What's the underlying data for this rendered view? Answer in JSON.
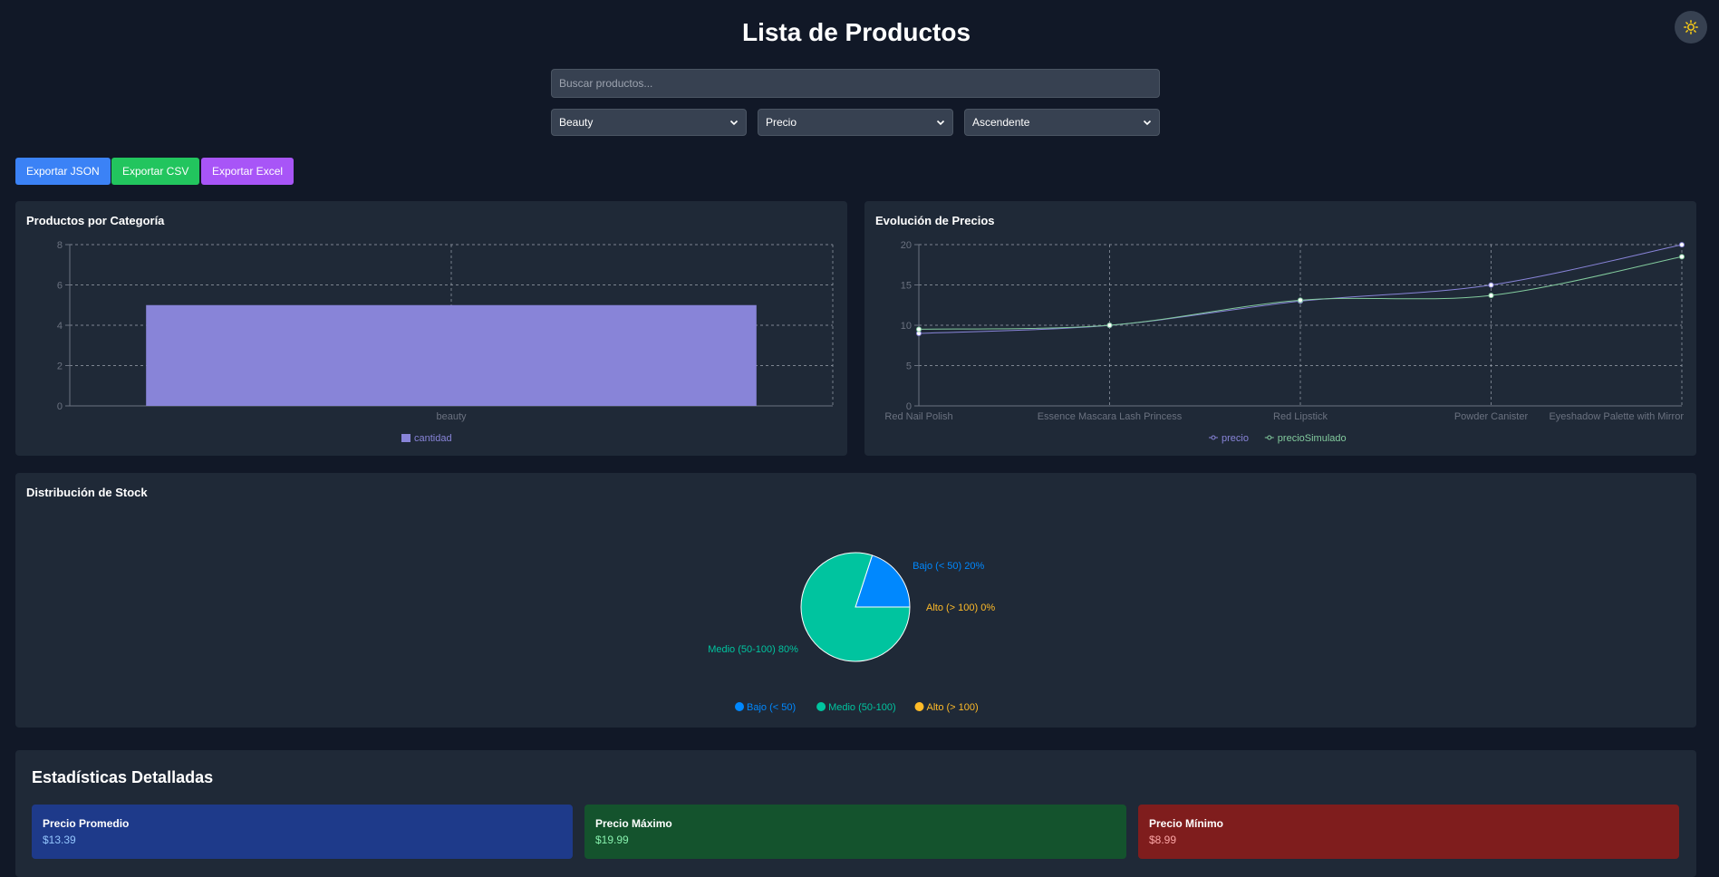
{
  "header": {
    "title": "Lista de Productos"
  },
  "search": {
    "placeholder": "Buscar productos...",
    "value": ""
  },
  "filters": {
    "category": "Beauty",
    "sort_field": "Precio",
    "sort_order": "Ascendente"
  },
  "export": {
    "json_label": "Exportar JSON",
    "csv_label": "Exportar CSV",
    "excel_label": "Exportar Excel"
  },
  "colors": {
    "json": "#3b82f6",
    "csv": "#22c55e",
    "excel": "#a855f7",
    "bar": "#8884d8",
    "precio": "#8884d8",
    "precioSimulado": "#82ca9d",
    "bajo": "#0088fe",
    "medio": "#00c49f",
    "alto": "#ffbb28"
  },
  "icons": {
    "theme": "sun-icon"
  },
  "charts": {
    "category": {
      "title": "Productos por Categoría"
    },
    "prices": {
      "title": "Evolución de Precios"
    },
    "stock": {
      "title": "Distribución de Stock"
    }
  },
  "chart_data": [
    {
      "type": "bar",
      "title": "Productos por Categoría",
      "categories": [
        "beauty"
      ],
      "series": [
        {
          "name": "cantidad",
          "values": [
            5
          ]
        }
      ],
      "yticks": [
        0,
        2,
        4,
        6,
        8
      ],
      "ylim": [
        0,
        8
      ],
      "grid": true,
      "legend": "bottom"
    },
    {
      "type": "line",
      "title": "Evolución de Precios",
      "categories": [
        "Red Nail Polish",
        "Essence Mascara Lash Princess",
        "Red Lipstick",
        "Powder Canister",
        "Eyeshadow Palette with Mirror"
      ],
      "series": [
        {
          "name": "precio",
          "values": [
            8.99,
            9.99,
            12.99,
            14.99,
            19.99
          ]
        },
        {
          "name": "precioSimulado",
          "values": [
            9.5,
            10.0,
            13.1,
            13.7,
            18.5
          ]
        }
      ],
      "yticks": [
        0,
        5,
        10,
        15,
        20
      ],
      "ylim": [
        0,
        20
      ],
      "grid": true,
      "legend": "bottom"
    },
    {
      "type": "pie",
      "title": "Distribución de Stock",
      "slices": [
        {
          "name": "Bajo (< 50)",
          "value": 20,
          "label": "Bajo (< 50) 20%"
        },
        {
          "name": "Medio (50-100)",
          "value": 80,
          "label": "Medio (50-100) 80%"
        },
        {
          "name": "Alto (> 100)",
          "value": 0,
          "label": "Alto (> 100) 0%"
        }
      ],
      "legend": "bottom"
    }
  ],
  "stats": {
    "title": "Estadísticas Detalladas",
    "avg": {
      "label": "Precio Promedio",
      "value": "$13.39"
    },
    "max": {
      "label": "Precio Máximo",
      "value": "$19.99"
    },
    "min": {
      "label": "Precio Mínimo",
      "value": "$8.99"
    }
  }
}
